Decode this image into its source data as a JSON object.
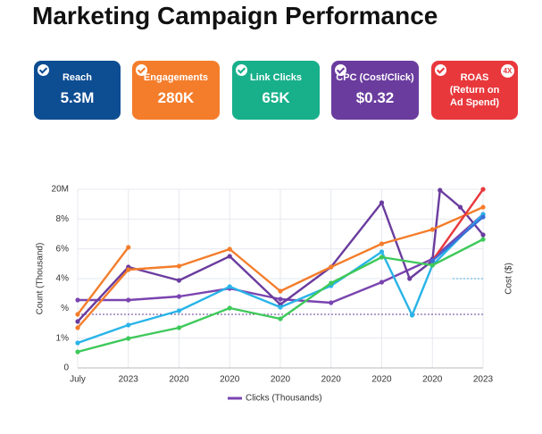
{
  "title": "Marketing Campaign Performance",
  "kpis": [
    {
      "label": "Reach",
      "value": "5.3M",
      "color": "#0d4d92"
    },
    {
      "label": "Engagements",
      "value": "280K",
      "color": "#f47d2b"
    },
    {
      "label": "Link Clicks",
      "value": "65K",
      "color": "#18b08a"
    },
    {
      "label": "CPC (Cost/Click)",
      "value": "$0.32",
      "color": "#6a3c9e"
    },
    {
      "label_lines": [
        "ROAS",
        "(Return on",
        "Ad Spend)"
      ],
      "badge": "4X",
      "color": "#e8383c"
    }
  ],
  "chart_data": {
    "type": "line",
    "ylabel": "Count (Thousand)",
    "y2label": "Cost ($)",
    "xlim": [
      0,
      8
    ],
    "xticks": [
      {
        "value": 0,
        "label": "July"
      },
      {
        "value": 1,
        "label": "2023"
      },
      {
        "value": 2,
        "label": "2020"
      },
      {
        "value": 3,
        "label": "2020"
      },
      {
        "value": 4,
        "label": "2020"
      },
      {
        "value": 5,
        "label": "2020"
      },
      {
        "value": 6,
        "label": "2020"
      },
      {
        "value": 7,
        "label": "2020"
      },
      {
        "value": 8,
        "label": "2023"
      }
    ],
    "ylim": [
      0,
      6
    ],
    "yticks": [
      0,
      {
        "value": 1,
        "label": "1%"
      },
      {
        "value": 2,
        "label": "%"
      },
      {
        "value": 3,
        "label": "4%"
      },
      {
        "value": 4,
        "label": "6%"
      },
      {
        "value": 5,
        "label": "8%"
      },
      {
        "value": 6,
        "label": "20M"
      }
    ],
    "grid": true,
    "hlines": [
      {
        "value": 1.8,
        "color": "#6a3c9e",
        "from": 0
      },
      {
        "value": 3.0,
        "color": "#4aa8e0",
        "from": 7.4
      }
    ],
    "series": [
      {
        "name": "Clicks (Thousands)",
        "color": "#7a44b0",
        "x": [
          0,
          1,
          2,
          3,
          4,
          5,
          6,
          7,
          8
        ],
        "values": [
          2.28,
          2.28,
          2.4,
          2.67,
          2.31,
          2.19,
          2.88,
          3.66,
          5.16
        ]
      },
      {
        "color": "#6a3c9e",
        "x": [
          0,
          1,
          2,
          3,
          4,
          5,
          6,
          6.55,
          7,
          7.15,
          7.55,
          8
        ],
        "values": [
          1.56,
          3.39,
          2.94,
          3.75,
          2.13,
          3.39,
          5.55,
          3.0,
          3.6,
          5.97,
          5.4,
          4.47
        ]
      },
      {
        "color": "#f47d2b",
        "x": [
          0,
          1,
          2,
          3,
          4,
          5,
          6,
          7,
          8
        ],
        "values": [
          1.35,
          3.3,
          3.42,
          3.99,
          2.58,
          3.39,
          4.17,
          4.65,
          5.4
        ]
      },
      {
        "color": "#f47d2b",
        "x": [
          0,
          1
        ],
        "values": [
          1.8,
          4.05
        ]
      },
      {
        "color": "#29b4e8",
        "x": [
          0,
          1,
          2,
          3,
          4,
          5,
          6,
          6.6,
          7,
          8
        ],
        "values": [
          0.84,
          1.44,
          1.92,
          2.73,
          2.04,
          2.76,
          3.9,
          1.77,
          3.45,
          5.16
        ]
      },
      {
        "color": "#3ec95a",
        "x": [
          0,
          1,
          2,
          3,
          4,
          5,
          6,
          7,
          8
        ],
        "values": [
          0.54,
          0.99,
          1.35,
          2.01,
          1.65,
          2.85,
          3.72,
          3.45,
          4.32
        ]
      },
      {
        "color": "#e8383c",
        "x": [
          7,
          8
        ],
        "values": [
          3.6,
          6.0
        ]
      },
      {
        "color": "#3a6fd8",
        "x": [
          7,
          8
        ],
        "values": [
          3.6,
          5.07
        ]
      }
    ]
  }
}
